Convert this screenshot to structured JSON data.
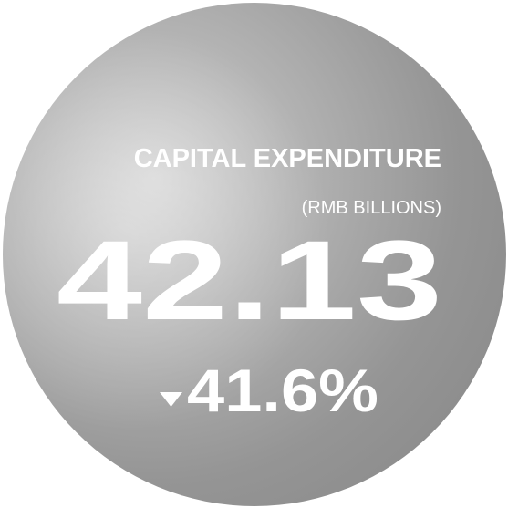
{
  "kpi": {
    "title": "CAPITAL EXPENDITURE",
    "unit": "(RMB BILLIONS)",
    "value": "42.13",
    "change": "41.6%"
  }
}
